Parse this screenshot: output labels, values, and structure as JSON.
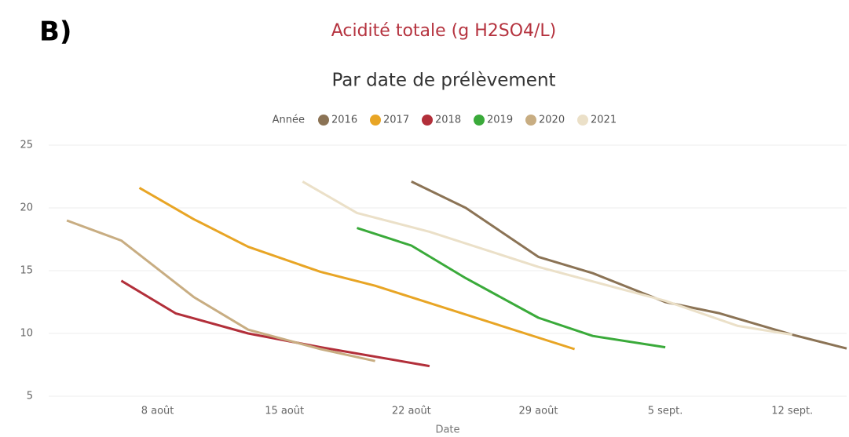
{
  "panel_label": "B)",
  "chart_data": {
    "type": "line",
    "title": "Acidité totale (g H2SO4/L)",
    "subtitle": "Par date de prélèvement",
    "x_label": "Date",
    "legend_title": "Année",
    "legend": "top",
    "grid": true,
    "xlim": [
      "08-02",
      "09-15"
    ],
    "xticks": [
      {
        "value": "08-08",
        "label": "8 août"
      },
      {
        "value": "08-15",
        "label": "15 août"
      },
      {
        "value": "08-22",
        "label": "22 août"
      },
      {
        "value": "08-29",
        "label": "29 août"
      },
      {
        "value": "09-05",
        "label": "5 sept."
      },
      {
        "value": "09-12",
        "label": "12 sept."
      }
    ],
    "ylim": [
      5,
      25
    ],
    "yticks": [
      5,
      10,
      15,
      20,
      25
    ],
    "series": [
      {
        "name": "2016",
        "color": "#8b7355",
        "x": [
          "08-22",
          "08-25",
          "08-29",
          "09-01",
          "09-05",
          "09-08",
          "09-12",
          "09-15"
        ],
        "values": [
          22.1,
          20.0,
          16.1,
          14.8,
          12.5,
          11.6,
          9.9,
          8.8
        ]
      },
      {
        "name": "2017",
        "color": "#e8a525",
        "x": [
          "08-07",
          "08-10",
          "08-13",
          "08-17",
          "08-20",
          "08-31"
        ],
        "values": [
          21.6,
          19.1,
          16.9,
          14.9,
          13.8,
          8.75
        ]
      },
      {
        "name": "2018",
        "color": "#b22f3a",
        "x": [
          "08-06",
          "08-09",
          "08-13",
          "08-17",
          "08-23"
        ],
        "values": [
          14.2,
          11.6,
          10.0,
          8.9,
          7.4
        ]
      },
      {
        "name": "2019",
        "color": "#3aaa3a",
        "x": [
          "08-19",
          "08-22",
          "08-25",
          "08-29",
          "09-01",
          "09-05"
        ],
        "values": [
          18.4,
          17.0,
          14.4,
          11.25,
          9.8,
          8.9
        ]
      },
      {
        "name": "2020",
        "color": "#c8ad82",
        "x": [
          "08-03",
          "08-06",
          "08-10",
          "08-13",
          "08-17",
          "08-20"
        ],
        "values": [
          19.0,
          17.4,
          12.9,
          10.3,
          8.75,
          7.8
        ]
      },
      {
        "name": "2021",
        "color": "#ebe0c8",
        "x": [
          "08-16",
          "08-19",
          "08-23",
          "08-29",
          "09-05",
          "09-09",
          "09-12"
        ],
        "values": [
          22.1,
          19.6,
          18.1,
          15.3,
          12.6,
          10.6,
          9.9
        ]
      }
    ]
  }
}
